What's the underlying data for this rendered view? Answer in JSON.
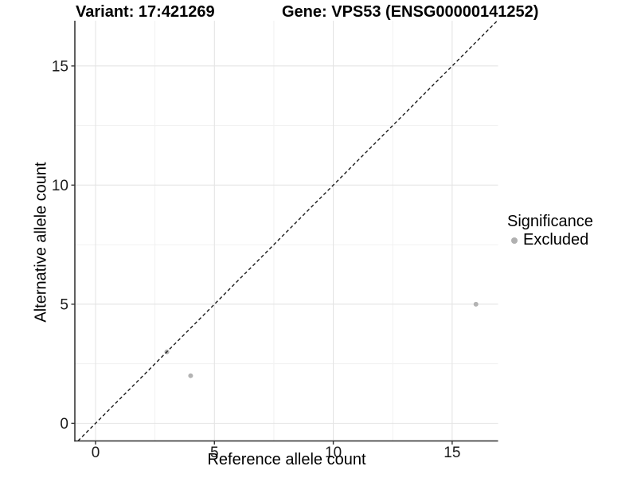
{
  "titles": {
    "variant": "Variant: 17:421269",
    "gene": "Gene: VPS53 (ENSG00000141252)"
  },
  "chart_data": {
    "type": "scatter",
    "title": "Variant: 17:421269   Gene: VPS53 (ENSG00000141252)",
    "xlabel": "Reference allele count",
    "ylabel": "Alternative allele count",
    "xlim": [
      -0.87,
      16.93
    ],
    "ylim": [
      -0.74,
      16.9
    ],
    "x_major_ticks": [
      0,
      5,
      10,
      15
    ],
    "y_major_ticks": [
      0,
      5,
      10,
      15
    ],
    "x_minor_gridlines": [
      2.5,
      7.5,
      12.5
    ],
    "y_minor_gridlines": [
      2.5,
      7.5,
      12.5
    ],
    "grid": "on",
    "identity_line": {
      "slope": 1,
      "intercept": 0,
      "style": "dashed",
      "color": "#1a1a1a"
    },
    "series": [
      {
        "name": "Excluded",
        "color": "#b3b3b3",
        "points": [
          [
            3,
            3
          ],
          [
            4,
            2
          ],
          [
            16,
            5
          ]
        ]
      }
    ],
    "legend": {
      "title": "Significance",
      "position": "right",
      "items": [
        {
          "label": "Excluded",
          "color": "#b0b0b0"
        }
      ]
    },
    "style": {
      "background": "#ffffff",
      "major_grid_color": "#e4e4e4",
      "minor_grid_color": "#f1f1f1",
      "axis_line_color": "#2b2b2b",
      "tick_color": "#333333",
      "tick_label_color": "#1a1a1a",
      "point_radius": 3,
      "tick_label_font_size": 19
    }
  }
}
